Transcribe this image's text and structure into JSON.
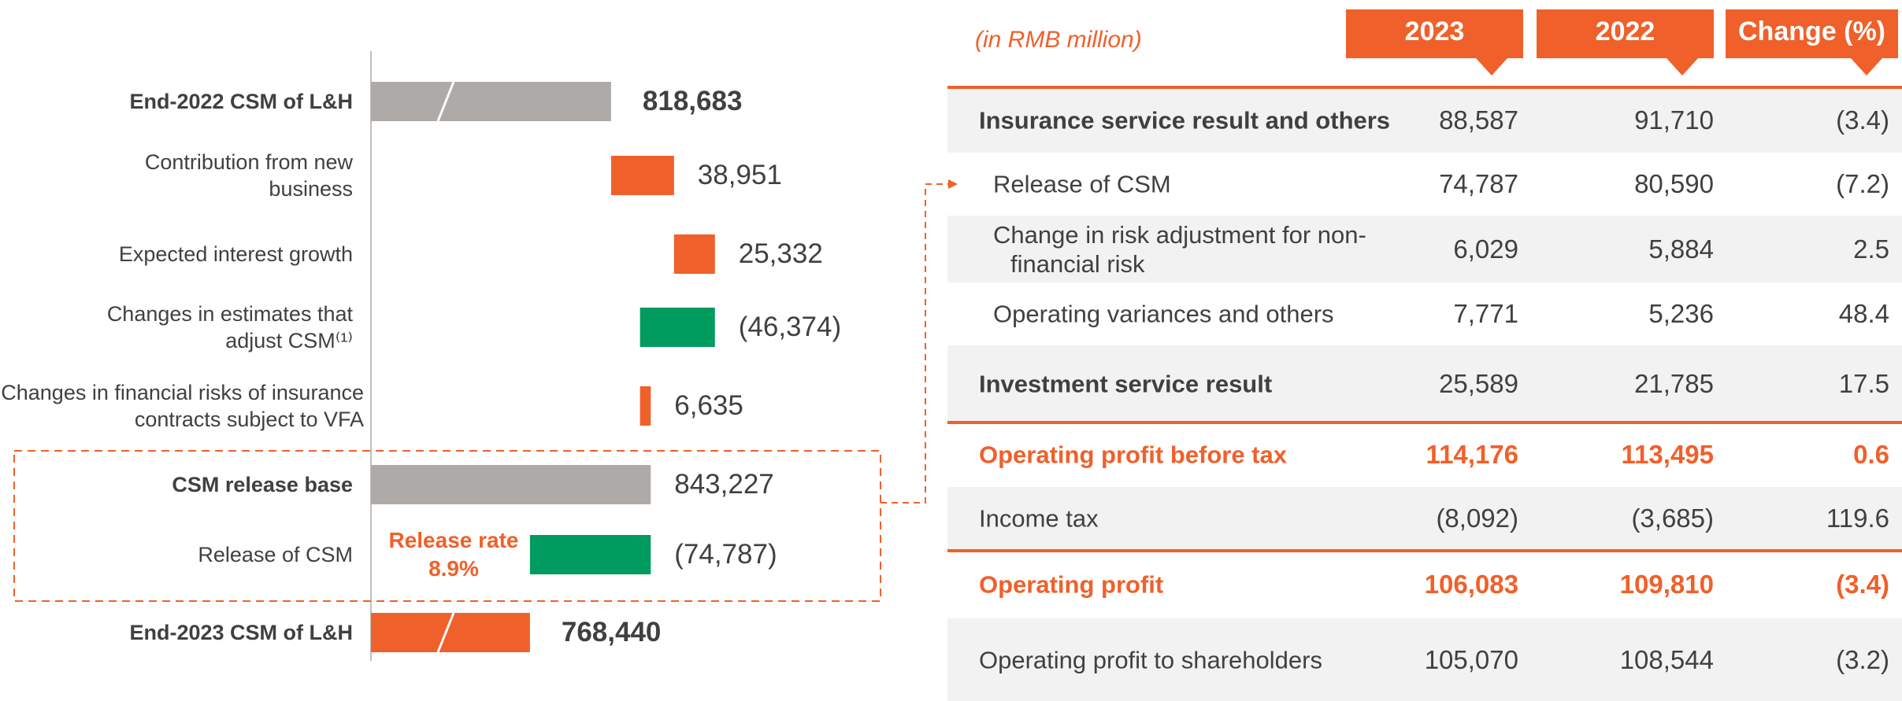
{
  "chart_data": {
    "type": "waterfall",
    "categories": [
      "End-2022 CSM of L&H",
      "Contribution from new business",
      "Expected interest growth",
      "Changes in estimates that adjust CSM⁽¹⁾",
      "Changes in financial risks of insurance contracts subject to VFA",
      "CSM release base",
      "Release of CSM",
      "End-2023 CSM of L&H"
    ],
    "values": [
      818683,
      38951,
      25332,
      -46374,
      6635,
      843227,
      -74787,
      768440
    ],
    "value_labels": [
      "818,683",
      "38,951",
      "25,332",
      "(46,374)",
      "6,635",
      "843,227",
      "(74,787)",
      "768,440"
    ],
    "totals": [
      true,
      false,
      false,
      false,
      false,
      true,
      false,
      true
    ],
    "axis_breaks": [
      true,
      false,
      false,
      false,
      false,
      false,
      false,
      true
    ],
    "colors": [
      "#aeaaa8",
      "#f0602a",
      "#f0602a",
      "#009b5f",
      "#f0602a",
      "#aeaaa8",
      "#009b5f",
      "#f0602a"
    ],
    "xlim": [
      670000,
      985000
    ],
    "annotation": [
      "Release rate",
      "8.9%"
    ]
  },
  "table": {
    "unit_note": "(in RMB million)",
    "header": [
      "2023",
      "2022",
      "Change (%)"
    ],
    "rows": [
      [
        "Insurance service result and others",
        "88,587",
        "91,710",
        "(3.4)"
      ],
      [
        "Release of CSM",
        "74,787",
        "80,590",
        "(7.2)"
      ],
      [
        "Change in risk adjustment for non-financial risk",
        "6,029",
        "5,884",
        "2.5"
      ],
      [
        "Operating variances and others",
        "7,771",
        "5,236",
        "48.4"
      ],
      [
        "Investment service result",
        "25,589",
        "21,785",
        "17.5"
      ],
      [
        "Operating profit before tax",
        "114,176",
        "113,495",
        "0.6"
      ],
      [
        "Income tax",
        "(8,092)",
        "(3,685)",
        "119.6"
      ],
      [
        "Operating profit",
        "106,083",
        "109,810",
        "(3.4)"
      ],
      [
        "Operating profit to shareholders",
        "105,070",
        "108,544",
        "(3.2)"
      ]
    ]
  }
}
